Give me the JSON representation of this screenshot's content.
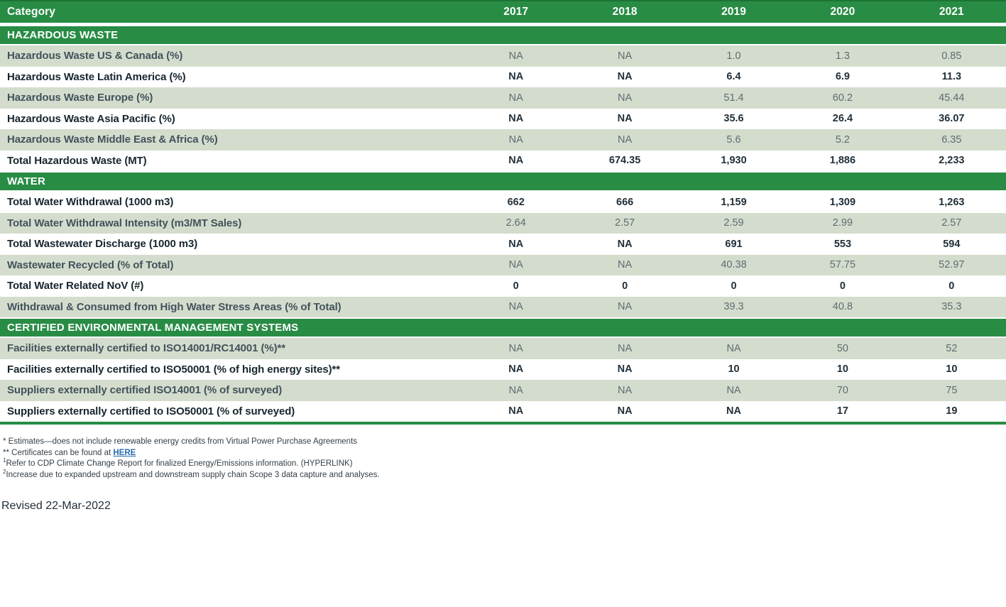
{
  "table": {
    "columns": [
      "Category",
      "2017",
      "2018",
      "2019",
      "2020",
      "2021"
    ],
    "sections": [
      {
        "title": "HAZARDOUS WASTE",
        "rows": [
          {
            "label": "Hazardous Waste US & Canada (%)",
            "values": [
              "NA",
              "NA",
              "1.0",
              "1.3",
              "0.85"
            ]
          },
          {
            "label": "Hazardous Waste Latin America (%)",
            "values": [
              "NA",
              "NA",
              "6.4",
              "6.9",
              "11.3"
            ]
          },
          {
            "label": "Hazardous Waste Europe (%)",
            "values": [
              "NA",
              "NA",
              "51.4",
              "60.2",
              "45.44"
            ]
          },
          {
            "label": "Hazardous Waste Asia Pacific (%)",
            "values": [
              "NA",
              "NA",
              "35.6",
              "26.4",
              "36.07"
            ]
          },
          {
            "label": "Hazardous Waste Middle East & Africa (%)",
            "values": [
              "NA",
              "NA",
              "5.6",
              "5.2",
              "6.35"
            ]
          },
          {
            "label": "Total Hazardous Waste (MT)",
            "values": [
              "NA",
              "674.35",
              "1,930",
              "1,886",
              "2,233"
            ]
          }
        ]
      },
      {
        "title": "WATER",
        "rows": [
          {
            "label": "Total Water Withdrawal (1000 m3)",
            "values": [
              "662",
              "666",
              "1,159",
              "1,309",
              "1,263"
            ]
          },
          {
            "label": "Total Water Withdrawal Intensity (m3/MT Sales)",
            "values": [
              "2.64",
              "2.57",
              "2.59",
              "2.99",
              "2.57"
            ]
          },
          {
            "label": "Total Wastewater Discharge (1000 m3)",
            "values": [
              "NA",
              "NA",
              "691",
              "553",
              "594"
            ]
          },
          {
            "label": "Wastewater Recycled (% of Total)",
            "values": [
              "NA",
              "NA",
              "40.38",
              "57.75",
              "52.97"
            ]
          },
          {
            "label": "Total Water Related NoV (#)",
            "values": [
              "0",
              "0",
              "0",
              "0",
              "0"
            ]
          },
          {
            "label": "Withdrawal & Consumed from High Water Stress Areas (% of Total)",
            "values": [
              "NA",
              "NA",
              "39.3",
              "40.8",
              "35.3"
            ]
          }
        ]
      },
      {
        "title": "CERTIFIED ENVIRONMENTAL MANAGEMENT SYSTEMS",
        "rows": [
          {
            "label": "Facilities externally certified to ISO14001/RC14001 (%)**",
            "values": [
              "NA",
              "NA",
              "NA",
              "50",
              "52"
            ]
          },
          {
            "label": "Facilities externally certified to ISO50001 (% of high energy sites)**",
            "values": [
              "NA",
              "NA",
              "10",
              "10",
              "10"
            ]
          },
          {
            "label": "Suppliers externally certified ISO14001 (% of surveyed)",
            "values": [
              "NA",
              "NA",
              "NA",
              "70",
              "75"
            ]
          },
          {
            "label": "Suppliers externally certified to ISO50001 (% of surveyed)",
            "values": [
              "NA",
              "NA",
              "NA",
              "17",
              "19"
            ]
          }
        ]
      }
    ]
  },
  "footnotes": [
    {
      "marker": "* ",
      "text": "Estimates—does not include renewable energy credits from Virtual Power Purchase Agreements"
    },
    {
      "marker": "** ",
      "text": "Certificates can be found at ",
      "link": "HERE"
    },
    {
      "sup": "1",
      "text": "Refer to CDP Climate Change Report for finalized Energy/Emissions information. (HYPERLINK)"
    },
    {
      "sup": "2",
      "text": "Increase due to expanded upstream and downstream supply chain Scope 3 data capture and analyses."
    }
  ],
  "revised": "Revised 22-Mar-2022",
  "colors": {
    "header_green": "#288c45",
    "header_top_edge": "#1b7434",
    "row_light_green": "#d4ddcd",
    "row_white": "#ffffff",
    "label_dark": "#17262f",
    "label_muted": "#42525c",
    "value_muted": "#5e6b73",
    "link_blue": "#2a6bad",
    "footnote_text": "#333f48"
  }
}
